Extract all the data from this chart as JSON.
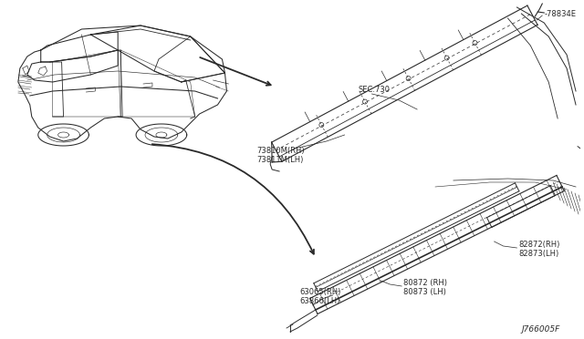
{
  "background_color": "#ffffff",
  "line_color": "#2a2a2a",
  "figsize": [
    6.4,
    3.72
  ],
  "dpi": 100,
  "labels": {
    "sec730": "SEC.730",
    "part78834E": "-78834E",
    "part73810M_RH": "73810M(RH)",
    "part73811M_LH": "73811M(LH)",
    "part82872_RH": "82872(RH)",
    "part82873_LH": "82873(LH)",
    "part80872_RH": "80872 (RH)",
    "part80873_LH": "80873 (LH)",
    "part63065_RH": "63065(RH)",
    "part63866_LH": "63866(LH)",
    "diagram_id": "J766005F"
  }
}
